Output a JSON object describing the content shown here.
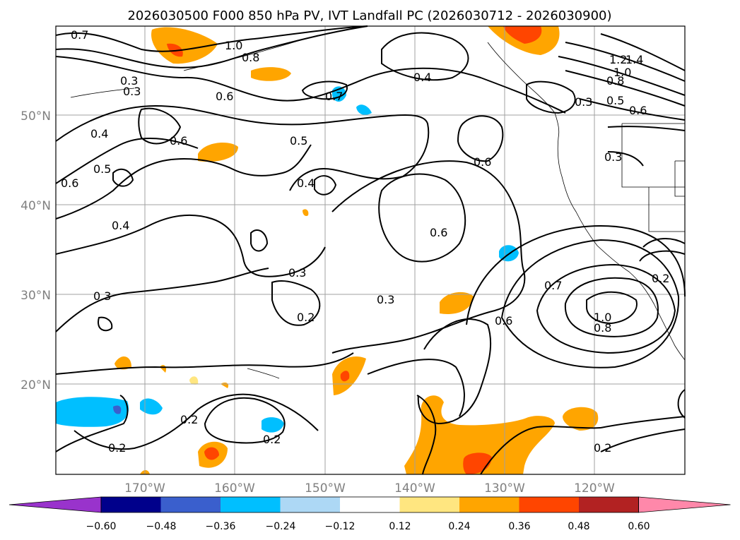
{
  "title": "2026030500 F000 850 hPa PV, IVT Landfall PC (2026030712 - 2026030900)",
  "lat_labels": [
    "50°N",
    "40°N",
    "30°N",
    "20°N"
  ],
  "lon_labels": [
    "170°W",
    "160°W",
    "150°W",
    "140°W",
    "130°W",
    "120°W"
  ],
  "colorbar": {
    "ticks": [
      "−0.60",
      "−0.48",
      "−0.36",
      "−0.24",
      "−0.12",
      "0.12",
      "0.24",
      "0.36",
      "0.48",
      "0.60"
    ],
    "colors": [
      "#9933cc",
      "#00008b",
      "#3a5fcd",
      "#00bfff",
      "#add8f5",
      "#ffffff",
      "#ffe680",
      "#ffa500",
      "#ff4500",
      "#b22222",
      "#ff88aa"
    ]
  },
  "contour_labels": [
    "0.7",
    "1.0",
    "0.8",
    "0.4",
    "0.7",
    "0.6",
    "0.3",
    "0.6",
    "0.5",
    "0.4",
    "0.4",
    "0.6",
    "0.5",
    "0.6",
    "0.4",
    "0.3",
    "0.6",
    "0.3",
    "0.2",
    "0.3",
    "0.3",
    "0.2",
    "0.2",
    "0.2",
    "0.6",
    "0.7",
    "1.0",
    "0.8",
    "0.2",
    "0.2",
    "0.3",
    "1.4",
    "1.2",
    "1.0",
    "0.8",
    "0.5",
    "0.6",
    "0.3"
  ],
  "colors": {
    "contour": "#000000",
    "grid": "#a0a0a0",
    "coast": "#000000"
  }
}
